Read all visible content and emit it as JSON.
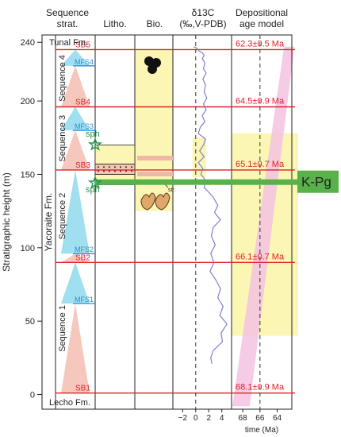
{
  "headers": {
    "seq_strat": [
      "Sequence",
      "strat."
    ],
    "litho": "Litho.",
    "bio": "Bio.",
    "d13c": [
      "δ13C",
      "(‰,V-PDB)"
    ],
    "age_model": [
      "Depositional",
      "age model"
    ]
  },
  "axis": {
    "ylabel": "Stratigraphic height (m)",
    "yticks": [
      0,
      50,
      100,
      150,
      200,
      240
    ],
    "ylim": [
      -10,
      245
    ],
    "d13c_ticks": [
      "−2",
      "0",
      "2",
      "4"
    ],
    "d13c_range": [
      -3.5,
      5.5
    ],
    "time_ticks": [
      "68",
      "66",
      "64"
    ],
    "time_range": [
      69.3,
      62.3
    ],
    "time_label": "time (Ma)"
  },
  "formations": [
    {
      "name": "Tunal Fm.",
      "from": 235,
      "to": 245
    },
    {
      "name": "Yacoraite Fm.",
      "from": 0,
      "to": 235
    },
    {
      "name": "Lecho Fm.",
      "from": -10,
      "to": 0
    }
  ],
  "sequences": [
    {
      "name": "Sequence 4",
      "from": 196,
      "to": 235
    },
    {
      "name": "Sequence 3",
      "from": 153,
      "to": 196
    },
    {
      "name": "Sequence 2",
      "from": 90,
      "to": 153
    },
    {
      "name": "Sequence 1",
      "from": 0,
      "to": 90
    }
  ],
  "boundaries": [
    {
      "label": "SB5",
      "height": 235
    },
    {
      "label": "SB4",
      "height": 196
    },
    {
      "label": "SB3",
      "height": 153
    },
    {
      "label": "SB2",
      "height": 90
    },
    {
      "label": "SB1",
      "height": 1
    }
  ],
  "mfs": [
    {
      "label": "MFS4",
      "height": 224
    },
    {
      "label": "MFS3",
      "height": 180
    },
    {
      "label": "MFS2",
      "height": 96
    },
    {
      "label": "MFS1",
      "height": 62
    }
  ],
  "ages": [
    {
      "label": "62.3±0.5 Ma",
      "height": 235
    },
    {
      "label": "64.5±0.9 Ma",
      "height": 196
    },
    {
      "label": "65.1±0.7 Ma",
      "height": 153
    },
    {
      "label": "66.1±0.7 Ma",
      "height": 90
    },
    {
      "label": "68.1±0.9 Ma",
      "height": 1
    }
  ],
  "sph_labels": [
    "sph",
    "sph"
  ],
  "str_label": "str.",
  "kpg": {
    "label": "K-Pg",
    "height": 145,
    "color": "#59b14a"
  },
  "colors": {
    "boundary": "#e0202b",
    "mfs": "#2b8fd0",
    "yellow_band": "#fbf6b4",
    "sequence_blue": "#9fdff0",
    "sequence_red": "#f6c8bd",
    "age_band": "#f3c2e0",
    "curve": "#7f7fcc"
  },
  "chart_data": {
    "type": "line",
    "title": "",
    "series": [
      {
        "name": "δ13C",
        "points": [
          [
            -0.3,
            237
          ],
          [
            0.2,
            236
          ],
          [
            0.5,
            234
          ],
          [
            1.0,
            233
          ],
          [
            1.3,
            231
          ],
          [
            1.0,
            229
          ],
          [
            1.4,
            226
          ],
          [
            1.2,
            222
          ],
          [
            1.6,
            219
          ],
          [
            1.1,
            215
          ],
          [
            1.5,
            211
          ],
          [
            1.3,
            206
          ],
          [
            1.7,
            202
          ],
          [
            1.2,
            198
          ],
          [
            1.6,
            194
          ],
          [
            1.0,
            190
          ],
          [
            1.4,
            186
          ],
          [
            0.7,
            182
          ],
          [
            0.4,
            178
          ],
          [
            1.5,
            174
          ],
          [
            1.2,
            170
          ],
          [
            0.6,
            166
          ],
          [
            1.3,
            162
          ],
          [
            0.4,
            158
          ],
          [
            1.1,
            154
          ],
          [
            0.8,
            150
          ],
          [
            1.5,
            146
          ],
          [
            1.3,
            141
          ],
          [
            2.6,
            135
          ],
          [
            3.4,
            129
          ],
          [
            2.9,
            124
          ],
          [
            3.8,
            119
          ],
          [
            2.7,
            114
          ],
          [
            2.4,
            108
          ],
          [
            3.0,
            102
          ],
          [
            2.3,
            96
          ],
          [
            2.8,
            90
          ],
          [
            2.2,
            84
          ],
          [
            3.1,
            78
          ],
          [
            3.8,
            72
          ],
          [
            3.4,
            66
          ],
          [
            4.2,
            60
          ],
          [
            3.7,
            54
          ],
          [
            4.8,
            48
          ],
          [
            3.9,
            42
          ],
          [
            4.1,
            36
          ],
          [
            2.7,
            30
          ],
          [
            2.3,
            25
          ],
          [
            2.5,
            21
          ]
        ]
      }
    ],
    "xlabel": "δ13C (‰,V-PDB)",
    "ylabel": "Stratigraphic height (m)",
    "ylim": [
      -10,
      245
    ]
  }
}
